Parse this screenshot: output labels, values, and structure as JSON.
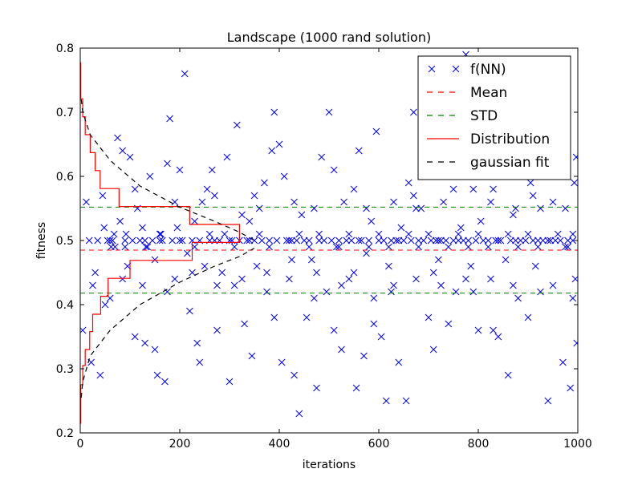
{
  "chart_data": {
    "type": "scatter",
    "title": "Landscape (1000 rand solution)",
    "xlabel": "iterations",
    "ylabel": "fitness",
    "xlim": [
      0,
      1000
    ],
    "ylim": [
      0.2,
      0.8
    ],
    "xticks": [
      "0",
      "200",
      "400",
      "600",
      "800",
      "1000"
    ],
    "yticks": [
      "0.2",
      "0.3",
      "0.4",
      "0.5",
      "0.6",
      "0.7",
      "0.8"
    ],
    "xtick_values": [
      0,
      200,
      400,
      600,
      800,
      1000
    ],
    "ytick_values": [
      0.2,
      0.3,
      0.4,
      0.5,
      0.6,
      0.7,
      0.8
    ],
    "grid": false,
    "legend_position": "top-right",
    "legend": [
      {
        "key": "points",
        "label": "f(NN)",
        "color": "#0000ff",
        "style": "x-marker"
      },
      {
        "key": "mean",
        "label": "Mean",
        "color": "#ff0000",
        "style": "dashed"
      },
      {
        "key": "std",
        "label": "STD",
        "color": "#008000",
        "style": "dashed"
      },
      {
        "key": "hist",
        "label": "Distribution",
        "color": "#ff0000",
        "style": "solid"
      },
      {
        "key": "gauss",
        "label": "gaussian fit",
        "color": "#000000",
        "style": "dashed"
      }
    ],
    "mean": 0.485,
    "std_lines": [
      0.418,
      0.552
    ],
    "points": [
      [
        5,
        0.36
      ],
      [
        12,
        0.56
      ],
      [
        18,
        0.5
      ],
      [
        22,
        0.31
      ],
      [
        30,
        0.45
      ],
      [
        35,
        0.5
      ],
      [
        40,
        0.29
      ],
      [
        48,
        0.52
      ],
      [
        55,
        0.5
      ],
      [
        60,
        0.41
      ],
      [
        65,
        0.5
      ],
      [
        70,
        0.49
      ],
      [
        75,
        0.66
      ],
      [
        80,
        0.53
      ],
      [
        85,
        0.64
      ],
      [
        90,
        0.5
      ],
      [
        95,
        0.46
      ],
      [
        100,
        0.63
      ],
      [
        105,
        0.5
      ],
      [
        110,
        0.35
      ],
      [
        115,
        0.55
      ],
      [
        120,
        0.5
      ],
      [
        125,
        0.52
      ],
      [
        130,
        0.34
      ],
      [
        135,
        0.49
      ],
      [
        140,
        0.6
      ],
      [
        145,
        0.5
      ],
      [
        150,
        0.47
      ],
      [
        155,
        0.29
      ],
      [
        160,
        0.51
      ],
      [
        165,
        0.5
      ],
      [
        170,
        0.28
      ],
      [
        175,
        0.62
      ],
      [
        180,
        0.69
      ],
      [
        185,
        0.5
      ],
      [
        190,
        0.44
      ],
      [
        195,
        0.52
      ],
      [
        200,
        0.61
      ],
      [
        205,
        0.5
      ],
      [
        210,
        0.76
      ],
      [
        215,
        0.48
      ],
      [
        220,
        0.39
      ],
      [
        225,
        0.5
      ],
      [
        230,
        0.53
      ],
      [
        235,
        0.34
      ],
      [
        240,
        0.5
      ],
      [
        245,
        0.56
      ],
      [
        250,
        0.46
      ],
      [
        255,
        0.58
      ],
      [
        260,
        0.5
      ],
      [
        265,
        0.61
      ],
      [
        270,
        0.5
      ],
      [
        275,
        0.36
      ],
      [
        280,
        0.5
      ],
      [
        285,
        0.45
      ],
      [
        290,
        0.51
      ],
      [
        295,
        0.63
      ],
      [
        300,
        0.28
      ],
      [
        305,
        0.5
      ],
      [
        310,
        0.49
      ],
      [
        315,
        0.68
      ],
      [
        320,
        0.5
      ],
      [
        325,
        0.44
      ],
      [
        330,
        0.37
      ],
      [
        335,
        0.5
      ],
      [
        340,
        0.53
      ],
      [
        345,
        0.32
      ],
      [
        350,
        0.5
      ],
      [
        355,
        0.46
      ],
      [
        360,
        0.55
      ],
      [
        365,
        0.5
      ],
      [
        370,
        0.59
      ],
      [
        375,
        0.42
      ],
      [
        380,
        0.5
      ],
      [
        385,
        0.64
      ],
      [
        390,
        0.7
      ],
      [
        395,
        0.5
      ],
      [
        400,
        0.65
      ],
      [
        405,
        0.31
      ],
      [
        410,
        0.6
      ],
      [
        415,
        0.5
      ],
      [
        420,
        0.44
      ],
      [
        425,
        0.5
      ],
      [
        430,
        0.29
      ],
      [
        435,
        0.5
      ],
      [
        440,
        0.23
      ],
      [
        445,
        0.54
      ],
      [
        450,
        0.5
      ],
      [
        455,
        0.38
      ],
      [
        460,
        0.5
      ],
      [
        465,
        0.47
      ],
      [
        470,
        0.55
      ],
      [
        475,
        0.27
      ],
      [
        480,
        0.5
      ],
      [
        485,
        0.63
      ],
      [
        490,
        0.5
      ],
      [
        495,
        0.42
      ],
      [
        500,
        0.7
      ],
      [
        505,
        0.5
      ],
      [
        510,
        0.61
      ],
      [
        515,
        0.49
      ],
      [
        520,
        0.5
      ],
      [
        525,
        0.33
      ],
      [
        530,
        0.56
      ],
      [
        535,
        0.5
      ],
      [
        540,
        0.44
      ],
      [
        545,
        0.5
      ],
      [
        550,
        0.58
      ],
      [
        555,
        0.27
      ],
      [
        560,
        0.64
      ],
      [
        565,
        0.5
      ],
      [
        570,
        0.32
      ],
      [
        575,
        0.48
      ],
      [
        580,
        0.5
      ],
      [
        585,
        0.53
      ],
      [
        590,
        0.41
      ],
      [
        595,
        0.67
      ],
      [
        600,
        0.5
      ],
      [
        605,
        0.35
      ],
      [
        610,
        0.5
      ],
      [
        615,
        0.25
      ],
      [
        620,
        0.46
      ],
      [
        625,
        0.5
      ],
      [
        630,
        0.56
      ],
      [
        635,
        0.5
      ],
      [
        640,
        0.31
      ],
      [
        645,
        0.52
      ],
      [
        650,
        0.5
      ],
      [
        655,
        0.25
      ],
      [
        660,
        0.59
      ],
      [
        665,
        0.5
      ],
      [
        670,
        0.7
      ],
      [
        675,
        0.44
      ],
      [
        680,
        0.5
      ],
      [
        685,
        0.55
      ],
      [
        690,
        0.5
      ],
      [
        695,
        0.62
      ],
      [
        700,
        0.38
      ],
      [
        705,
        0.5
      ],
      [
        710,
        0.33
      ],
      [
        715,
        0.5
      ],
      [
        720,
        0.47
      ],
      [
        725,
        0.5
      ],
      [
        730,
        0.56
      ],
      [
        735,
        0.5
      ],
      [
        740,
        0.37
      ],
      [
        745,
        0.61
      ],
      [
        750,
        0.5
      ],
      [
        755,
        0.42
      ],
      [
        760,
        0.5
      ],
      [
        765,
        0.52
      ],
      [
        770,
        0.5
      ],
      [
        775,
        0.79
      ],
      [
        780,
        0.5
      ],
      [
        785,
        0.46
      ],
      [
        790,
        0.58
      ],
      [
        795,
        0.5
      ],
      [
        800,
        0.36
      ],
      [
        805,
        0.53
      ],
      [
        810,
        0.5
      ],
      [
        815,
        0.65
      ],
      [
        820,
        0.5
      ],
      [
        825,
        0.44
      ],
      [
        830,
        0.58
      ],
      [
        835,
        0.5
      ],
      [
        840,
        0.35
      ],
      [
        845,
        0.5
      ],
      [
        850,
        0.6
      ],
      [
        855,
        0.47
      ],
      [
        860,
        0.29
      ],
      [
        865,
        0.5
      ],
      [
        870,
        0.54
      ],
      [
        875,
        0.5
      ],
      [
        880,
        0.41
      ],
      [
        885,
        0.5
      ],
      [
        890,
        0.62
      ],
      [
        895,
        0.5
      ],
      [
        900,
        0.38
      ],
      [
        905,
        0.59
      ],
      [
        910,
        0.5
      ],
      [
        915,
        0.46
      ],
      [
        920,
        0.5
      ],
      [
        925,
        0.55
      ],
      [
        930,
        0.5
      ],
      [
        935,
        0.6
      ],
      [
        940,
        0.25
      ],
      [
        945,
        0.5
      ],
      [
        950,
        0.43
      ],
      [
        955,
        0.5
      ],
      [
        960,
        0.63
      ],
      [
        965,
        0.5
      ],
      [
        970,
        0.31
      ],
      [
        975,
        0.49
      ],
      [
        980,
        0.5
      ],
      [
        985,
        0.27
      ],
      [
        990,
        0.5
      ],
      [
        995,
        0.44
      ],
      [
        998,
        0.34
      ],
      [
        997,
        0.63
      ],
      [
        993,
        0.59
      ],
      [
        60,
        0.5
      ],
      [
        62,
        0.49
      ],
      [
        68,
        0.51
      ],
      [
        90,
        0.49
      ],
      [
        92,
        0.51
      ],
      [
        130,
        0.5
      ],
      [
        132,
        0.49
      ],
      [
        160,
        0.5
      ],
      [
        162,
        0.51
      ],
      [
        200,
        0.5
      ],
      [
        230,
        0.49
      ],
      [
        260,
        0.51
      ],
      [
        300,
        0.5
      ],
      [
        340,
        0.5
      ],
      [
        360,
        0.51
      ],
      [
        380,
        0.49
      ],
      [
        420,
        0.5
      ],
      [
        440,
        0.51
      ],
      [
        460,
        0.49
      ],
      [
        480,
        0.51
      ],
      [
        520,
        0.49
      ],
      [
        540,
        0.51
      ],
      [
        560,
        0.5
      ],
      [
        580,
        0.49
      ],
      [
        600,
        0.51
      ],
      [
        620,
        0.49
      ],
      [
        640,
        0.5
      ],
      [
        660,
        0.51
      ],
      [
        680,
        0.49
      ],
      [
        700,
        0.51
      ],
      [
        720,
        0.5
      ],
      [
        740,
        0.49
      ],
      [
        760,
        0.51
      ],
      [
        780,
        0.49
      ],
      [
        800,
        0.51
      ],
      [
        820,
        0.49
      ],
      [
        840,
        0.5
      ],
      [
        860,
        0.51
      ],
      [
        880,
        0.49
      ],
      [
        900,
        0.51
      ],
      [
        920,
        0.49
      ],
      [
        940,
        0.5
      ],
      [
        960,
        0.51
      ],
      [
        980,
        0.49
      ],
      [
        990,
        0.51
      ],
      [
        50,
        0.4
      ],
      [
        110,
        0.58
      ],
      [
        150,
        0.33
      ],
      [
        190,
        0.56
      ],
      [
        240,
        0.31
      ],
      [
        270,
        0.57
      ],
      [
        310,
        0.43
      ],
      [
        350,
        0.57
      ],
      [
        390,
        0.38
      ],
      [
        430,
        0.56
      ],
      [
        470,
        0.41
      ],
      [
        510,
        0.36
      ],
      [
        550,
        0.45
      ],
      [
        590,
        0.37
      ],
      [
        630,
        0.43
      ],
      [
        670,
        0.57
      ],
      [
        710,
        0.45
      ],
      [
        750,
        0.58
      ],
      [
        790,
        0.42
      ],
      [
        830,
        0.36
      ],
      [
        870,
        0.43
      ],
      [
        910,
        0.57
      ],
      [
        950,
        0.56
      ],
      [
        990,
        0.41
      ],
      [
        25,
        0.43
      ],
      [
        45,
        0.57
      ],
      [
        85,
        0.44
      ],
      [
        125,
        0.43
      ],
      [
        175,
        0.42
      ],
      [
        225,
        0.45
      ],
      [
        275,
        0.43
      ],
      [
        325,
        0.54
      ],
      [
        375,
        0.45
      ],
      [
        425,
        0.47
      ],
      [
        475,
        0.45
      ],
      [
        525,
        0.43
      ],
      [
        575,
        0.55
      ],
      [
        625,
        0.42
      ],
      [
        675,
        0.55
      ],
      [
        725,
        0.43
      ],
      [
        775,
        0.44
      ],
      [
        825,
        0.56
      ],
      [
        875,
        0.55
      ],
      [
        925,
        0.42
      ],
      [
        975,
        0.55
      ]
    ],
    "histogram": {
      "bin_edges": [
        0.215,
        0.245,
        0.275,
        0.305,
        0.33,
        0.358,
        0.385,
        0.413,
        0.441,
        0.469,
        0.497,
        0.525,
        0.553,
        0.581,
        0.609,
        0.637,
        0.665,
        0.693,
        0.721,
        0.749,
        0.777
      ],
      "counts": [
        1,
        1,
        5,
        10,
        19,
        25,
        41,
        56,
        100,
        225,
        320,
        220,
        78,
        40,
        30,
        20,
        10,
        5,
        1,
        1
      ]
    },
    "gaussian_fit": {
      "upper": [
        [
          2,
          0.72
        ],
        [
          5,
          0.7
        ],
        [
          20,
          0.665
        ],
        [
          60,
          0.625
        ],
        [
          120,
          0.585
        ],
        [
          200,
          0.552
        ],
        [
          270,
          0.53
        ],
        [
          320,
          0.513
        ],
        [
          350,
          0.5
        ]
      ],
      "lower": [
        [
          2,
          0.255
        ],
        [
          5,
          0.28
        ],
        [
          20,
          0.32
        ],
        [
          60,
          0.36
        ],
        [
          120,
          0.4
        ],
        [
          200,
          0.435
        ],
        [
          270,
          0.46
        ],
        [
          320,
          0.475
        ],
        [
          350,
          0.488
        ]
      ]
    },
    "colors": {
      "points": "#0000ff",
      "mean": "#ff0000",
      "std": "#008000",
      "hist": "#ff0000",
      "gauss": "#000000"
    }
  }
}
